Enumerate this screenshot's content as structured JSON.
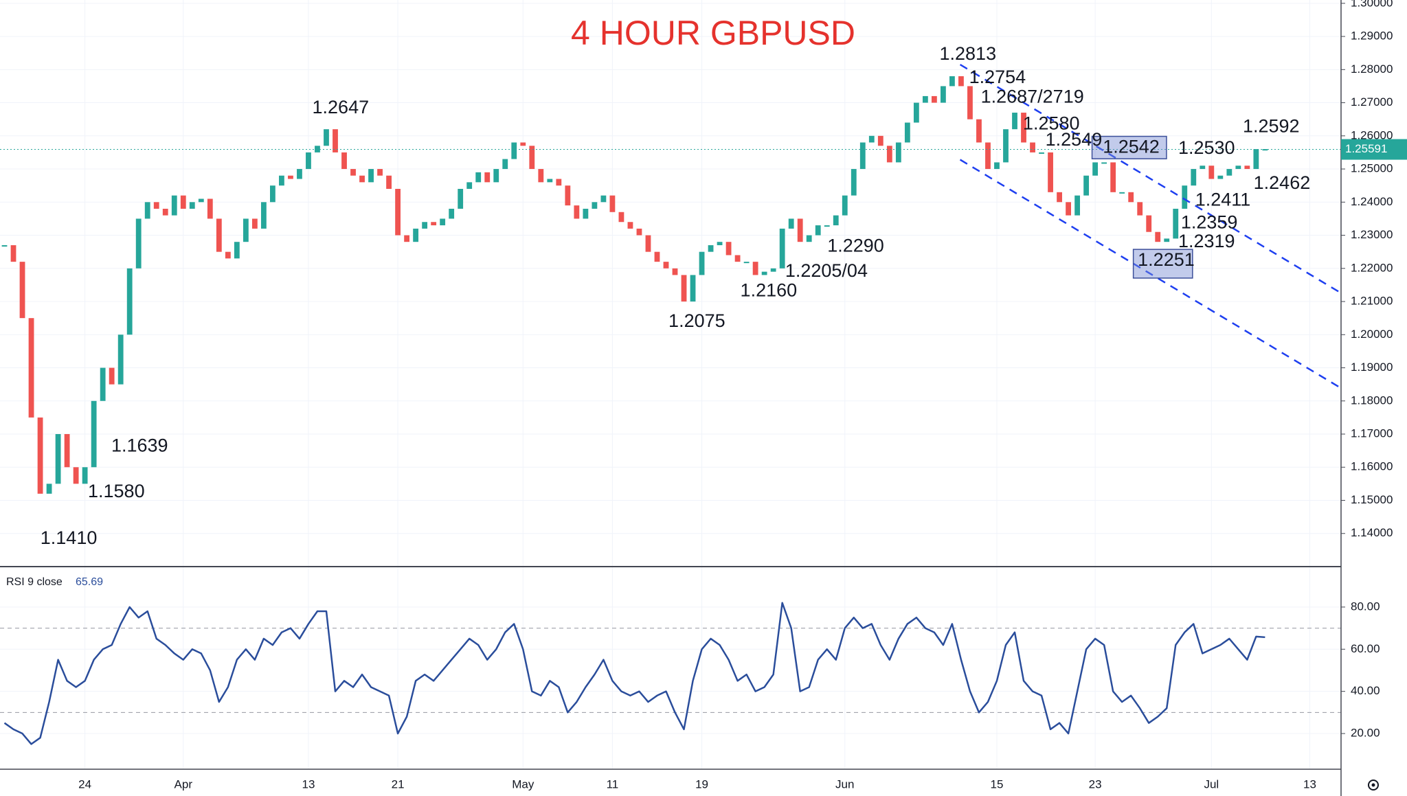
{
  "chart_data": [
    {
      "type": "candlestick",
      "title": "4 HOUR GBPUSD",
      "up_color": "#26a69a",
      "down_color": "#ef5350",
      "values": [
        1.227,
        1.222,
        1.205,
        1.175,
        1.152,
        1.155,
        1.17,
        1.16,
        1.155,
        1.16,
        1.18,
        1.19,
        1.185,
        1.2,
        1.22,
        1.235,
        1.24,
        1.238,
        1.236,
        1.242,
        1.238,
        1.24,
        1.241,
        1.235,
        1.225,
        1.223,
        1.228,
        1.235,
        1.232,
        1.24,
        1.245,
        1.248,
        1.247,
        1.25,
        1.255,
        1.257,
        1.262,
        1.255,
        1.25,
        1.248,
        1.246,
        1.25,
        1.248,
        1.244,
        1.23,
        1.228,
        1.232,
        1.234,
        1.233,
        1.235,
        1.238,
        1.244,
        1.246,
        1.249,
        1.246,
        1.25,
        1.253,
        1.258,
        1.257,
        1.25,
        1.246,
        1.247,
        1.245,
        1.239,
        1.235,
        1.238,
        1.24,
        1.242,
        1.237,
        1.234,
        1.232,
        1.23,
        1.225,
        1.222,
        1.22,
        1.218,
        1.21,
        1.218,
        1.225,
        1.227,
        1.228,
        1.224,
        1.222,
        1.222,
        1.218,
        1.219,
        1.22,
        1.232,
        1.235,
        1.228,
        1.23,
        1.233,
        1.233,
        1.236,
        1.242,
        1.25,
        1.258,
        1.26,
        1.257,
        1.252,
        1.258,
        1.264,
        1.27,
        1.272,
        1.27,
        1.275,
        1.278,
        1.275,
        1.265,
        1.258,
        1.25,
        1.252,
        1.262,
        1.267,
        1.258,
        1.255,
        1.255,
        1.243,
        1.24,
        1.236,
        1.242,
        1.248,
        1.252,
        1.252,
        1.243,
        1.243,
        1.24,
        1.236,
        1.231,
        1.228,
        1.229,
        1.238,
        1.245,
        1.25,
        1.251,
        1.247,
        1.248,
        1.25,
        1.251,
        1.25,
        1.256,
        1.256,
        null,
        null,
        null,
        null,
        null,
        null,
        null,
        null
      ],
      "ylim": [
        1.13,
        1.301
      ],
      "yticks": [
        {
          "value": 1.14,
          "label": "1.14000"
        },
        {
          "value": 1.15,
          "label": "1.15000"
        },
        {
          "value": 1.16,
          "label": "1.16000"
        },
        {
          "value": 1.17,
          "label": "1.17000"
        },
        {
          "value": 1.18,
          "label": "1.18000"
        },
        {
          "value": 1.19,
          "label": "1.19000"
        },
        {
          "value": 1.2,
          "label": "1.20000"
        },
        {
          "value": 1.21,
          "label": "1.21000"
        },
        {
          "value": 1.22,
          "label": "1.22000"
        },
        {
          "value": 1.23,
          "label": "1.23000"
        },
        {
          "value": 1.24,
          "label": "1.24000"
        },
        {
          "value": 1.25,
          "label": "1.25000"
        },
        {
          "value": 1.26,
          "label": "1.26000"
        },
        {
          "value": 1.27,
          "label": "1.27000"
        },
        {
          "value": 1.28,
          "label": "1.28000"
        },
        {
          "value": 1.29,
          "label": "1.29000"
        },
        {
          "value": 1.3,
          "label": "1.30000"
        }
      ],
      "last_price": {
        "value": 1.25591,
        "label": "1.25591",
        "color": "#26a69a"
      },
      "annotations": [
        "1.2813",
        "1.2754",
        "1.2687/2719",
        "1.2647",
        "1.2580",
        "1.2549",
        "1.2542",
        "1.2592",
        "1.2530",
        "1.2462",
        "1.2411",
        "1.2359",
        "1.2319",
        "1.2290",
        "1.2251",
        "1.2205/04",
        "1.2160",
        "1.2075",
        "1.1639",
        "1.1580",
        "1.1410"
      ],
      "grid": true
    },
    {
      "type": "line",
      "name": "RSI 9 close",
      "last_value": {
        "value": 65.69,
        "label": "65.69"
      },
      "categories": [
        null,
        null,
        null,
        null,
        null,
        null,
        null,
        null,
        null,
        "24",
        null,
        null,
        null,
        null,
        null,
        null,
        null,
        null,
        null,
        null,
        "Apr",
        null,
        null,
        null,
        null,
        null,
        null,
        null,
        null,
        null,
        null,
        null,
        null,
        null,
        "13",
        null,
        null,
        null,
        null,
        null,
        null,
        null,
        null,
        null,
        "21",
        null,
        null,
        null,
        null,
        null,
        null,
        null,
        null,
        null,
        null,
        null,
        null,
        null,
        "May",
        null,
        null,
        null,
        null,
        null,
        null,
        null,
        null,
        null,
        "11",
        null,
        null,
        null,
        null,
        null,
        null,
        null,
        null,
        null,
        "19",
        null,
        null,
        null,
        null,
        null,
        null,
        null,
        null,
        null,
        null,
        null,
        null,
        null,
        null,
        null,
        "Jun",
        null,
        null,
        null,
        null,
        null,
        null,
        null,
        null,
        null,
        null,
        null,
        null,
        null,
        null,
        null,
        null,
        "15",
        null,
        null,
        null,
        null,
        null,
        null,
        null,
        null,
        null,
        null,
        "23",
        null,
        null,
        null,
        null,
        null,
        null,
        null,
        null,
        null,
        null,
        null,
        null,
        "Jul",
        null,
        null,
        null,
        null,
        null,
        null,
        null,
        null,
        null,
        null,
        "13",
        null,
        null,
        null
      ],
      "series": [
        {
          "name": "RSI 9 close",
          "color": "#2a4d9b",
          "values": [
            25,
            22,
            20,
            15,
            18,
            35,
            55,
            45,
            42,
            45,
            55,
            60,
            62,
            72,
            80,
            75,
            78,
            65,
            62,
            58,
            55,
            60,
            58,
            50,
            35,
            42,
            55,
            60,
            55,
            65,
            62,
            68,
            70,
            65,
            72,
            78,
            78,
            40,
            45,
            42,
            48,
            42,
            40,
            38,
            20,
            28,
            45,
            48,
            45,
            50,
            55,
            60,
            65,
            62,
            55,
            60,
            68,
            72,
            60,
            40,
            38,
            45,
            42,
            30,
            35,
            42,
            48,
            55,
            45,
            40,
            38,
            40,
            35,
            38,
            40,
            30,
            22,
            45,
            60,
            65,
            62,
            55,
            45,
            48,
            40,
            42,
            48,
            82,
            70,
            40,
            42,
            55,
            60,
            55,
            70,
            75,
            70,
            72,
            62,
            55,
            65,
            72,
            75,
            70,
            68,
            62,
            72,
            55,
            40,
            30,
            35,
            45,
            62,
            68,
            45,
            40,
            38,
            22,
            25,
            20,
            40,
            60,
            65,
            62,
            40,
            35,
            38,
            32,
            25,
            28,
            32,
            62,
            68,
            72,
            58,
            60,
            62,
            65,
            60,
            55,
            66,
            65.69,
            null,
            null,
            null,
            null,
            null,
            null,
            null,
            null
          ]
        }
      ],
      "levels": [
        30,
        70
      ],
      "ylim": [
        3.4,
        95.6
      ],
      "yticks": [
        {
          "value": 20,
          "label": "20.00"
        },
        {
          "value": 40,
          "label": "40.00"
        },
        {
          "value": 60,
          "label": "60.00"
        },
        {
          "value": 80,
          "label": "80.00"
        }
      ],
      "grid": true
    }
  ]
}
